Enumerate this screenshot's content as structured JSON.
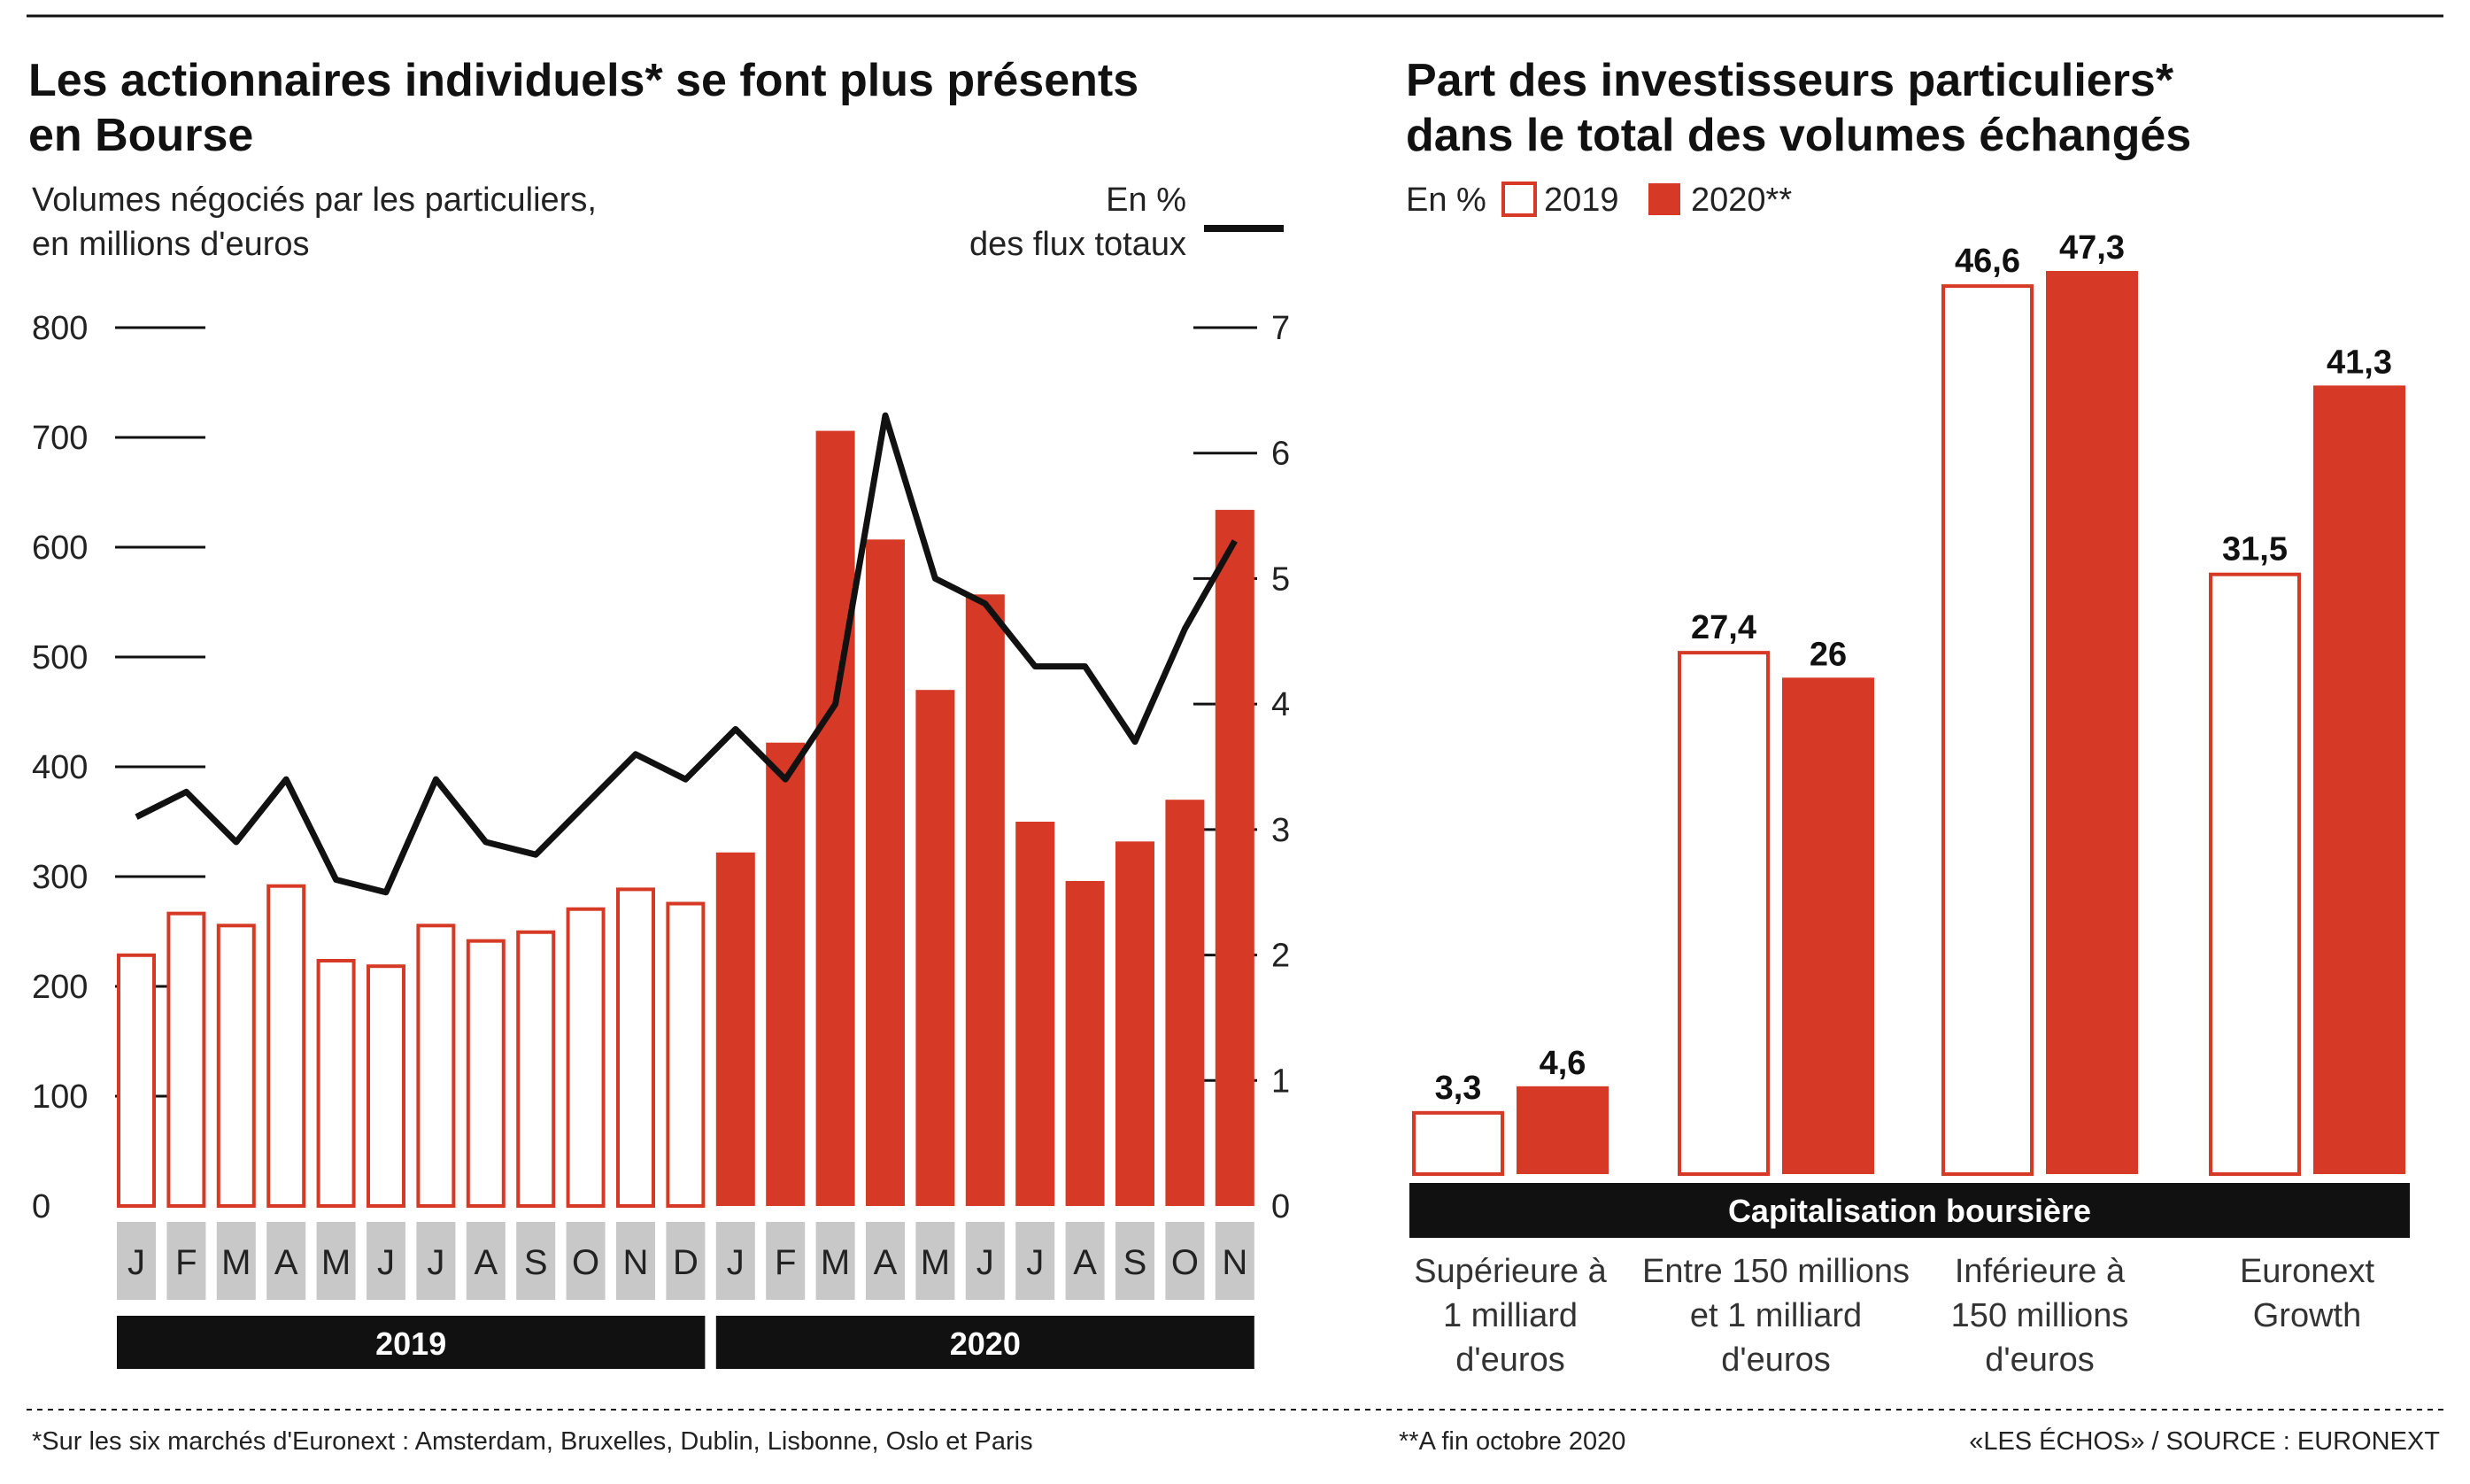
{
  "colors": {
    "accent": "#d63a26",
    "dark": "#111111",
    "gray": "#c8c8c8",
    "white": "#ffffff"
  },
  "left": {
    "title_line1": "Les actionnaires individuels* se font plus présents",
    "title_line2": "en Bourse",
    "sub_left_1": "Volumes négociés par les particuliers,",
    "sub_left_2": "en millions d'euros",
    "sub_right_1": "En %",
    "sub_right_2": "des flux totaux"
  },
  "right": {
    "title_line1": "Part des investisseurs particuliers*",
    "title_line2": "dans le total des volumes échangés",
    "unit": "En %",
    "legend_2019": "2019",
    "legend_2020": "2020**",
    "axis_band_label": "Capitalisation boursière"
  },
  "footer": {
    "note1": "*Sur les six marchés d'Euronext : Amsterdam, Bruxelles, Dublin, Lisbonne, Oslo et Paris",
    "note2": "**A fin octobre 2020",
    "source": "«LES ÉCHOS» / SOURCE : EURONEXT"
  },
  "chart_data": [
    {
      "type": "bar",
      "title": "Les actionnaires individuels* se font plus présents en Bourse",
      "ylabel": "Volumes négociés par les particuliers, en millions d'euros",
      "y2label": "En % des flux totaux",
      "ylim": [
        0,
        800
      ],
      "y2lim": [
        0,
        7
      ],
      "yticks": [
        0,
        100,
        200,
        300,
        400,
        500,
        600,
        700,
        800
      ],
      "y2ticks": [
        0,
        1,
        2,
        3,
        4,
        5,
        6,
        7
      ],
      "categories": [
        "J",
        "F",
        "M",
        "A",
        "M",
        "J",
        "J",
        "A",
        "S",
        "O",
        "N",
        "D",
        "J",
        "F",
        "M",
        "A",
        "M",
        "J",
        "J",
        "A",
        "S",
        "O",
        "N"
      ],
      "years": [
        {
          "label": "2019",
          "start": 0,
          "count": 12
        },
        {
          "label": "2020",
          "start": 12,
          "count": 11
        }
      ],
      "series": [
        {
          "name": "Volumes négociés (M€)",
          "kind": "bar",
          "axis": "left",
          "values": [
            230,
            268,
            257,
            293,
            225,
            220,
            257,
            243,
            251,
            272,
            290,
            277,
            322,
            422,
            706,
            607,
            470,
            557,
            350,
            296,
            332,
            370,
            634
          ]
        },
        {
          "name": "En % des flux totaux",
          "kind": "line",
          "axis": "right",
          "values": [
            3.1,
            3.3,
            2.9,
            3.4,
            2.6,
            2.5,
            3.4,
            2.9,
            2.8,
            3.2,
            3.6,
            3.4,
            3.8,
            3.4,
            4.0,
            6.3,
            5.0,
            4.8,
            4.3,
            4.3,
            3.7,
            4.6,
            5.3
          ]
        }
      ]
    },
    {
      "type": "bar",
      "title": "Part des investisseurs particuliers* dans le total des volumes échangés",
      "ylabel": "En %",
      "xlabel": "Capitalisation boursière",
      "categories": [
        "Supérieure à 1 milliard d'euros",
        "Entre 150 millions et 1 milliard d'euros",
        "Inférieure à 150 millions d'euros",
        "Euronext Growth"
      ],
      "category_lines": [
        [
          "Supérieure à",
          "1 milliard",
          "d'euros"
        ],
        [
          "Entre 150 millions",
          "et 1 milliard",
          "d'euros"
        ],
        [
          "Inférieure à",
          "150 millions",
          "d'euros"
        ],
        [
          "Euronext",
          "Growth"
        ]
      ],
      "series": [
        {
          "name": "2019",
          "values": [
            3.3,
            27.4,
            46.6,
            31.5
          ],
          "labels": [
            "3,3",
            "27,4",
            "46,6",
            "31,5"
          ]
        },
        {
          "name": "2020**",
          "values": [
            4.6,
            26,
            47.3,
            41.3
          ],
          "labels": [
            "4,6",
            "26",
            "47,3",
            "41,3"
          ]
        }
      ]
    }
  ]
}
